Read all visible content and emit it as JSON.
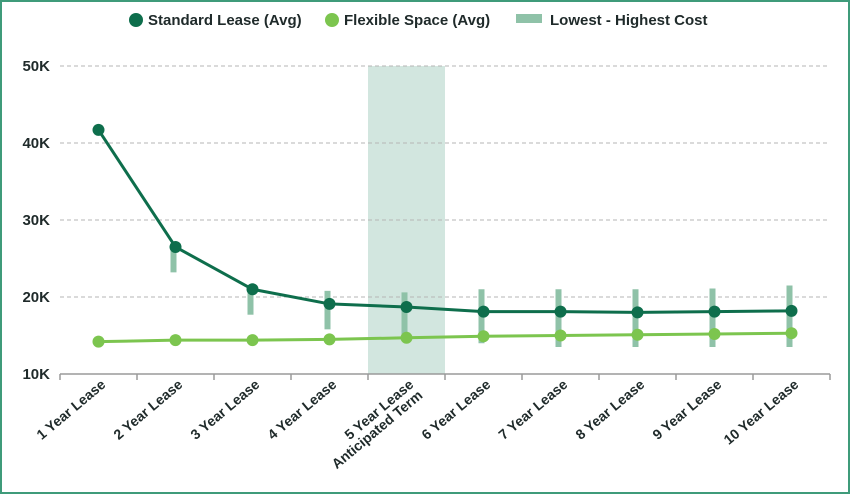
{
  "chart_data": {
    "type": "line",
    "title": "",
    "xlabel": "",
    "ylabel": "",
    "categories": [
      "1 Year Lease",
      "2 Year Lease",
      "3 Year Lease",
      "4 Year Lease",
      [
        "5 Year Lease",
        "Anticipated Term"
      ],
      "6 Year Lease",
      "7 Year Lease",
      "8 Year Lease",
      "9 Year Lease",
      "10 Year Lease"
    ],
    "y_ticks": [
      "10K",
      "20K",
      "30K",
      "40K",
      "50K"
    ],
    "ylim": [
      10000,
      50000
    ],
    "grid": true,
    "legend_position": "top",
    "highlight_category_index": 4,
    "series": [
      {
        "name": "Standard Lease (Avg)",
        "color": "#0e6e4c",
        "values": [
          41700,
          26500,
          21000,
          19100,
          18700,
          18100,
          18100,
          18000,
          18100,
          18200
        ]
      },
      {
        "name": "Flexible Space (Avg)",
        "color": "#7cc54f",
        "values": [
          14200,
          14400,
          14400,
          14500,
          14700,
          14900,
          15000,
          15100,
          15200,
          15300
        ]
      }
    ],
    "range": {
      "name": "Lowest - Highest Cost",
      "color": "#8fc2a8",
      "low": [
        null,
        23200,
        17700,
        15800,
        15000,
        14000,
        13500,
        13500,
        13500,
        13500
      ],
      "high": [
        null,
        26500,
        21000,
        20800,
        20600,
        21000,
        21000,
        21000,
        21100,
        21500
      ]
    },
    "colors": {
      "highlight": "#d2e6df",
      "grid": "#b5b5b5",
      "axis": "#9a9a9a",
      "frame": "#3f9b7a"
    }
  }
}
